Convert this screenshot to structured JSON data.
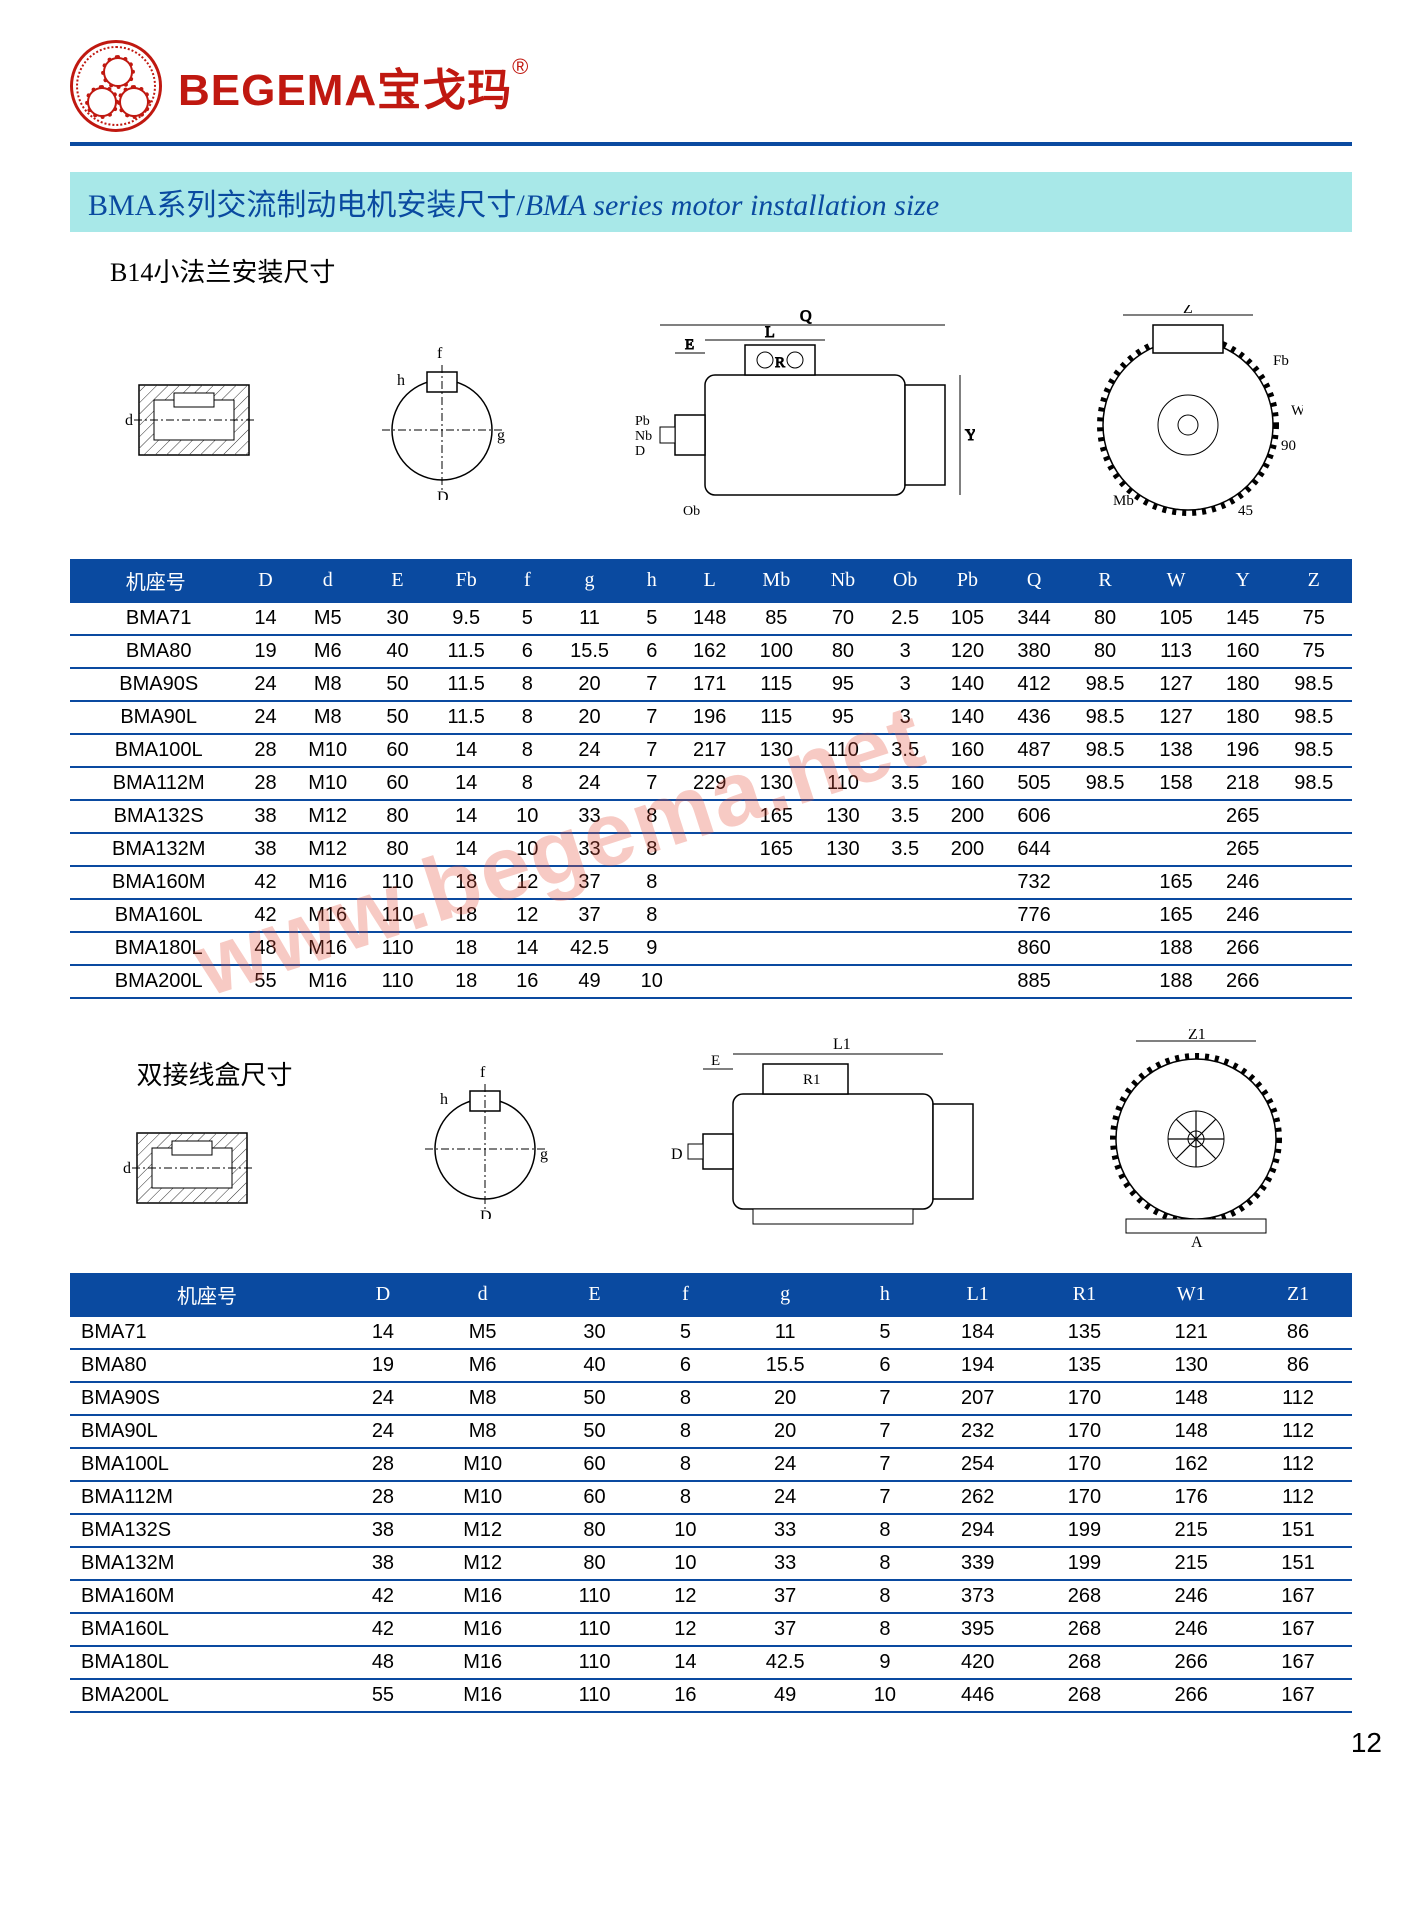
{
  "brand": {
    "latin": "BEGEMA",
    "cjk": "宝戈玛",
    "reg": "®"
  },
  "title": {
    "cjk": "BMA系列交流制动电机安装尺寸",
    "sep": "/",
    "en": "BMA series motor installation size"
  },
  "section1": {
    "subtitle": "B14小法兰安装尺寸",
    "diagram_labels": [
      "d",
      "f",
      "h",
      "D",
      "g",
      "Ob",
      "Pb",
      "Nb",
      "D",
      "E",
      "L",
      "R",
      "Q",
      "Y",
      "Z",
      "Fb",
      "W",
      "Mb",
      "90",
      "45"
    ],
    "columns": [
      "机座号",
      "D",
      "d",
      "E",
      "Fb",
      "f",
      "g",
      "h",
      "L",
      "Mb",
      "Nb",
      "Ob",
      "Pb",
      "Q",
      "R",
      "W",
      "Y",
      "Z"
    ],
    "rows": [
      [
        "BMA71",
        "14",
        "M5",
        "30",
        "9.5",
        "5",
        "11",
        "5",
        "148",
        "85",
        "70",
        "2.5",
        "105",
        "344",
        "80",
        "105",
        "145",
        "75"
      ],
      [
        "BMA80",
        "19",
        "M6",
        "40",
        "11.5",
        "6",
        "15.5",
        "6",
        "162",
        "100",
        "80",
        "3",
        "120",
        "380",
        "80",
        "113",
        "160",
        "75"
      ],
      [
        "BMA90S",
        "24",
        "M8",
        "50",
        "11.5",
        "8",
        "20",
        "7",
        "171",
        "115",
        "95",
        "3",
        "140",
        "412",
        "98.5",
        "127",
        "180",
        "98.5"
      ],
      [
        "BMA90L",
        "24",
        "M8",
        "50",
        "11.5",
        "8",
        "20",
        "7",
        "196",
        "115",
        "95",
        "3",
        "140",
        "436",
        "98.5",
        "127",
        "180",
        "98.5"
      ],
      [
        "BMA100L",
        "28",
        "M10",
        "60",
        "14",
        "8",
        "24",
        "7",
        "217",
        "130",
        "110",
        "3.5",
        "160",
        "487",
        "98.5",
        "138",
        "196",
        "98.5"
      ],
      [
        "BMA112M",
        "28",
        "M10",
        "60",
        "14",
        "8",
        "24",
        "7",
        "229",
        "130",
        "110",
        "3.5",
        "160",
        "505",
        "98.5",
        "158",
        "218",
        "98.5"
      ],
      [
        "BMA132S",
        "38",
        "M12",
        "80",
        "14",
        "10",
        "33",
        "8",
        "",
        "165",
        "130",
        "3.5",
        "200",
        "606",
        "",
        "",
        "265",
        ""
      ],
      [
        "BMA132M",
        "38",
        "M12",
        "80",
        "14",
        "10",
        "33",
        "8",
        "",
        "165",
        "130",
        "3.5",
        "200",
        "644",
        "",
        "",
        "265",
        ""
      ],
      [
        "BMA160M",
        "42",
        "M16",
        "110",
        "18",
        "12",
        "37",
        "8",
        "",
        "",
        "",
        "",
        "",
        "732",
        "",
        "165",
        "246",
        ""
      ],
      [
        "BMA160L",
        "42",
        "M16",
        "110",
        "18",
        "12",
        "37",
        "8",
        "",
        "",
        "",
        "",
        "",
        "776",
        "",
        "165",
        "246",
        ""
      ],
      [
        "BMA180L",
        "48",
        "M16",
        "110",
        "18",
        "14",
        "42.5",
        "9",
        "",
        "",
        "",
        "",
        "",
        "860",
        "",
        "188",
        "266",
        ""
      ],
      [
        "BMA200L",
        "55",
        "M16",
        "110",
        "18",
        "16",
        "49",
        "10",
        "",
        "",
        "",
        "",
        "",
        "885",
        "",
        "188",
        "266",
        ""
      ]
    ]
  },
  "section2": {
    "subtitle": "双接线盒尺寸",
    "diagram_labels": [
      "d",
      "f",
      "h",
      "D",
      "g",
      "D",
      "E",
      "L1",
      "R1",
      "Z1",
      "A"
    ],
    "columns": [
      "机座号",
      "D",
      "d",
      "E",
      "f",
      "g",
      "h",
      "L1",
      "R1",
      "W1",
      "Z1"
    ],
    "rows": [
      [
        "BMA71",
        "14",
        "M5",
        "30",
        "5",
        "11",
        "5",
        "184",
        "135",
        "121",
        "86"
      ],
      [
        "BMA80",
        "19",
        "M6",
        "40",
        "6",
        "15.5",
        "6",
        "194",
        "135",
        "130",
        "86"
      ],
      [
        "BMA90S",
        "24",
        "M8",
        "50",
        "8",
        "20",
        "7",
        "207",
        "170",
        "148",
        "112"
      ],
      [
        "BMA90L",
        "24",
        "M8",
        "50",
        "8",
        "20",
        "7",
        "232",
        "170",
        "148",
        "112"
      ],
      [
        "BMA100L",
        "28",
        "M10",
        "60",
        "8",
        "24",
        "7",
        "254",
        "170",
        "162",
        "112"
      ],
      [
        "BMA112M",
        "28",
        "M10",
        "60",
        "8",
        "24",
        "7",
        "262",
        "170",
        "176",
        "112"
      ],
      [
        "BMA132S",
        "38",
        "M12",
        "80",
        "10",
        "33",
        "8",
        "294",
        "199",
        "215",
        "151"
      ],
      [
        "BMA132M",
        "38",
        "M12",
        "80",
        "10",
        "33",
        "8",
        "339",
        "199",
        "215",
        "151"
      ],
      [
        "BMA160M",
        "42",
        "M16",
        "110",
        "12",
        "37",
        "8",
        "373",
        "268",
        "246",
        "167"
      ],
      [
        "BMA160L",
        "42",
        "M16",
        "110",
        "12",
        "37",
        "8",
        "395",
        "268",
        "246",
        "167"
      ],
      [
        "BMA180L",
        "48",
        "M16",
        "110",
        "14",
        "42.5",
        "9",
        "420",
        "268",
        "266",
        "167"
      ],
      [
        "BMA200L",
        "55",
        "M16",
        "110",
        "16",
        "49",
        "10",
        "446",
        "268",
        "266",
        "167"
      ]
    ]
  },
  "watermark": "www.begema.net",
  "page_number": "12",
  "colors": {
    "header_blue": "#0a4aa0",
    "title_bg": "#a8e8e8",
    "brand_red": "#c01810",
    "row_border": "#0a4aa0"
  }
}
